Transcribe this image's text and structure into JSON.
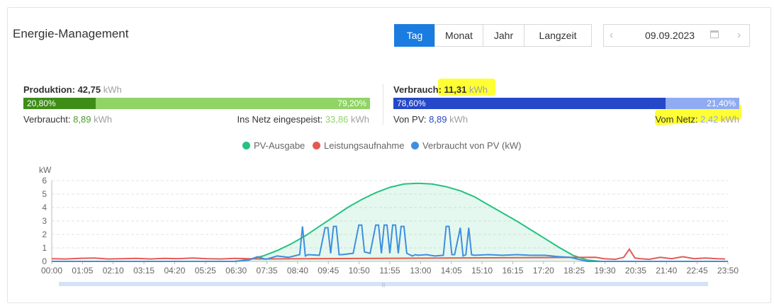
{
  "header": {
    "title": "Energie-Management"
  },
  "period_tabs": [
    {
      "label": "Tag",
      "active": true
    },
    {
      "label": "Monat",
      "active": false
    },
    {
      "label": "Jahr",
      "active": false
    },
    {
      "label": "Langzeit",
      "active": false
    }
  ],
  "date_picker": {
    "value": "09.09.2023",
    "prev_icon": "chevron-left-icon",
    "next_icon": "chevron-right-icon",
    "calendar_icon": "calendar-icon"
  },
  "production": {
    "label": "Produktion:",
    "value": "42,75",
    "unit": "kWh",
    "bar_left_pct_label": "20,80%",
    "bar_right_pct_label": "79,20%",
    "bar_left_fraction": 0.208,
    "consumed_label": "Verbraucht:",
    "consumed_value": "8,89",
    "consumed_unit": "kWh",
    "fed_label": "Ins Netz eingespeist:",
    "fed_value": "33,86",
    "fed_unit": "kWh"
  },
  "consumption": {
    "label": "Verbrauch:",
    "value": "11,31",
    "unit": "kWh",
    "bar_left_pct_label": "78,60%",
    "bar_right_pct_label": "21,40%",
    "bar_left_fraction": 0.786,
    "from_pv_label": "Von PV:",
    "from_pv_value": "8,89",
    "from_pv_unit": "kWh",
    "from_grid_label": "Vom Netz:",
    "from_grid_value": "2,42",
    "from_grid_unit": "kWh"
  },
  "colors": {
    "accent": "#1a7ce0",
    "prod_dark": "#3d8d17",
    "prod_light": "#8fd464",
    "cons_dark": "#2548c8",
    "cons_light": "#8fabf2",
    "pv": "#26c27f",
    "load": "#e35b50",
    "selfuse": "#3e8fe0",
    "highlight": "#ffff33"
  },
  "chart_data": {
    "type": "line",
    "ylabel": "kW",
    "ylim": [
      0,
      6
    ],
    "yticks": [
      "0",
      "1",
      "2",
      "3",
      "4",
      "5",
      "6"
    ],
    "x_tick_labels": [
      "00:00",
      "01:05",
      "02:10",
      "03:15",
      "04:20",
      "05:25",
      "06:30",
      "07:35",
      "08:40",
      "09:45",
      "10:50",
      "11:55",
      "13:00",
      "14:05",
      "15:10",
      "16:15",
      "17:20",
      "18:25",
      "19:30",
      "20:35",
      "21:40",
      "22:45",
      "23:50"
    ],
    "grid": true,
    "legend": [
      "PV-Ausgabe",
      "Leistungsaufnahme",
      "Verbraucht von PV (kW)"
    ],
    "legend_placement": "top-center",
    "series": [
      {
        "name": "PV-Ausgabe",
        "x_hours": [
          6.5,
          7.0,
          7.5,
          8.0,
          8.5,
          9.0,
          9.5,
          10.0,
          10.5,
          11.0,
          11.5,
          12.0,
          12.5,
          13.0,
          13.5,
          14.0,
          14.5,
          15.0,
          15.5,
          16.0,
          16.5,
          17.0,
          17.5,
          18.0,
          18.5,
          19.0,
          19.5
        ],
        "values": [
          0,
          0.15,
          0.4,
          0.8,
          1.3,
          1.9,
          2.6,
          3.3,
          4.0,
          4.6,
          5.1,
          5.5,
          5.75,
          5.8,
          5.75,
          5.55,
          5.25,
          4.8,
          4.2,
          3.6,
          3.0,
          2.35,
          1.7,
          1.05,
          0.45,
          0.1,
          0
        ]
      },
      {
        "name": "Leistungsaufnahme",
        "x_hours": [
          0,
          0.5,
          1,
          1.5,
          2,
          2.5,
          3,
          3.5,
          4,
          4.5,
          5,
          5.5,
          6,
          6.5,
          7,
          7.5,
          19.3,
          19.6,
          20,
          20.3,
          20.5,
          20.7,
          20.9,
          21.2,
          21.6,
          22,
          22.4,
          22.8,
          23.2,
          23.6,
          23.9
        ],
        "values": [
          0.2,
          0.18,
          0.22,
          0.25,
          0.18,
          0.2,
          0.22,
          0.18,
          0.22,
          0.2,
          0.25,
          0.2,
          0.18,
          0.22,
          0.2,
          0.18,
          0.3,
          0.2,
          0.15,
          0.3,
          0.9,
          0.25,
          0.2,
          0.15,
          0.3,
          0.2,
          0.35,
          0.2,
          0.25,
          0.2,
          0.18
        ]
      },
      {
        "name": "Verbraucht von PV (kW)",
        "x_hours": [
          0,
          6.5,
          7.0,
          7.3,
          7.6,
          8.0,
          8.4,
          8.8,
          8.9,
          9.0,
          9.1,
          9.5,
          9.7,
          9.8,
          9.9,
          10.0,
          10.1,
          10.2,
          10.3,
          10.7,
          10.9,
          11.0,
          11.1,
          11.3,
          11.5,
          11.6,
          11.7,
          11.8,
          11.9,
          12.0,
          12.1,
          12.2,
          12.3,
          12.4,
          12.5,
          12.6,
          12.7,
          12.8,
          12.9,
          13.0,
          13.3,
          13.6,
          13.9,
          14.0,
          14.1,
          14.2,
          14.3,
          14.5,
          14.6,
          14.7,
          14.8,
          14.9,
          15.0,
          15.5,
          16.0,
          16.5,
          17.0,
          17.5,
          18.0,
          18.4,
          18.8,
          19.0,
          24
        ],
        "values": [
          0,
          0,
          0.1,
          0.35,
          0.15,
          0.4,
          0.3,
          0.5,
          2.6,
          0.4,
          0.5,
          0.45,
          2.5,
          2.5,
          0.6,
          2.6,
          2.6,
          0.5,
          0.5,
          0.6,
          2.7,
          2.7,
          0.7,
          0.6,
          2.7,
          2.7,
          0.6,
          2.7,
          2.7,
          0.6,
          2.7,
          2.7,
          0.6,
          2.6,
          2.6,
          0.6,
          0.5,
          0.4,
          0.5,
          0.45,
          0.5,
          0.4,
          0.45,
          2.6,
          2.6,
          0.5,
          0.5,
          2.5,
          0.4,
          0.5,
          2.5,
          0.5,
          0.45,
          0.5,
          0.45,
          0.5,
          0.45,
          0.45,
          0.35,
          0.3,
          0.1,
          0,
          0
        ]
      }
    ]
  }
}
